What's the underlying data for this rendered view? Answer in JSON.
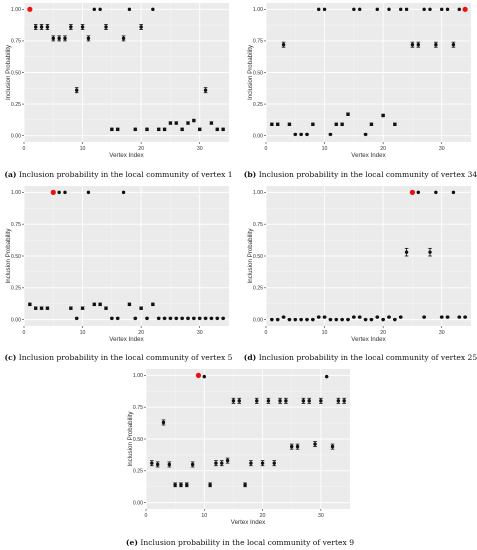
{
  "chart_data": [
    {
      "type": "scatter",
      "caption_label": "(a)",
      "caption_text": "Inclusion probability in the local community of vertex 1",
      "xlabel": "Vertex Index",
      "ylabel": "Inclusion Probability",
      "xlim": [
        0,
        35
      ],
      "ylim": [
        -0.05,
        1.05
      ],
      "x_ticks": [
        0,
        10,
        20,
        30
      ],
      "y_ticks": [
        0.0,
        0.25,
        0.5,
        0.75,
        1.0
      ],
      "y_tick_labels": [
        "0.00",
        "0.25",
        "0.50",
        "0.75",
        "1.00"
      ],
      "grid": true,
      "highlight_color": "#ee1111",
      "point_color": "#111111",
      "panel_background": "#ebebeb",
      "highlight_index": 1,
      "points": [
        {
          "x": 1,
          "y": 1.0,
          "err": 0
        },
        {
          "x": 2,
          "y": 0.86,
          "err": 0.02
        },
        {
          "x": 3,
          "y": 0.86,
          "err": 0.02
        },
        {
          "x": 4,
          "y": 0.86,
          "err": 0.02
        },
        {
          "x": 5,
          "y": 0.77,
          "err": 0.02
        },
        {
          "x": 6,
          "y": 0.77,
          "err": 0.02
        },
        {
          "x": 7,
          "y": 0.77,
          "err": 0.02
        },
        {
          "x": 8,
          "y": 0.86,
          "err": 0.02
        },
        {
          "x": 9,
          "y": 0.36,
          "err": 0.02
        },
        {
          "x": 10,
          "y": 0.86,
          "err": 0.02
        },
        {
          "x": 11,
          "y": 0.77,
          "err": 0.02
        },
        {
          "x": 12,
          "y": 1.0,
          "err": 0
        },
        {
          "x": 13,
          "y": 1.0,
          "err": 0
        },
        {
          "x": 14,
          "y": 0.86,
          "err": 0.02
        },
        {
          "x": 15,
          "y": 0.05,
          "err": 0.01
        },
        {
          "x": 16,
          "y": 0.05,
          "err": 0.01
        },
        {
          "x": 17,
          "y": 0.77,
          "err": 0.02
        },
        {
          "x": 18,
          "y": 1.0,
          "err": 0
        },
        {
          "x": 19,
          "y": 0.05,
          "err": 0.01
        },
        {
          "x": 20,
          "y": 0.86,
          "err": 0.02
        },
        {
          "x": 21,
          "y": 0.05,
          "err": 0.01
        },
        {
          "x": 22,
          "y": 1.0,
          "err": 0
        },
        {
          "x": 23,
          "y": 0.05,
          "err": 0.01
        },
        {
          "x": 24,
          "y": 0.05,
          "err": 0.01
        },
        {
          "x": 25,
          "y": 0.1,
          "err": 0.01
        },
        {
          "x": 26,
          "y": 0.1,
          "err": 0.01
        },
        {
          "x": 27,
          "y": 0.05,
          "err": 0.01
        },
        {
          "x": 28,
          "y": 0.1,
          "err": 0.01
        },
        {
          "x": 29,
          "y": 0.12,
          "err": 0.01
        },
        {
          "x": 30,
          "y": 0.05,
          "err": 0.01
        },
        {
          "x": 31,
          "y": 0.36,
          "err": 0.02
        },
        {
          "x": 32,
          "y": 0.1,
          "err": 0.01
        },
        {
          "x": 33,
          "y": 0.05,
          "err": 0.01
        },
        {
          "x": 34,
          "y": 0.05,
          "err": 0.01
        }
      ]
    },
    {
      "type": "scatter",
      "caption_label": "(b)",
      "caption_text": "Inclusion probability in the local community of vertex 34",
      "xlabel": "Vertex Index",
      "ylabel": "Inclusion Probability",
      "xlim": [
        0,
        35
      ],
      "ylim": [
        -0.05,
        1.05
      ],
      "x_ticks": [
        0,
        10,
        20,
        30
      ],
      "y_ticks": [
        0.0,
        0.25,
        0.5,
        0.75,
        1.0
      ],
      "y_tick_labels": [
        "0.00",
        "0.25",
        "0.50",
        "0.75",
        "1.00"
      ],
      "grid": true,
      "highlight_color": "#ee1111",
      "point_color": "#111111",
      "panel_background": "#ebebeb",
      "highlight_index": 34,
      "points": [
        {
          "x": 1,
          "y": 0.09,
          "err": 0.01
        },
        {
          "x": 2,
          "y": 0.09,
          "err": 0.01
        },
        {
          "x": 3,
          "y": 0.72,
          "err": 0.02
        },
        {
          "x": 4,
          "y": 0.09,
          "err": 0.01
        },
        {
          "x": 5,
          "y": 0.01,
          "err": 0.005
        },
        {
          "x": 6,
          "y": 0.01,
          "err": 0.005
        },
        {
          "x": 7,
          "y": 0.01,
          "err": 0.005
        },
        {
          "x": 8,
          "y": 0.09,
          "err": 0.01
        },
        {
          "x": 9,
          "y": 1.0,
          "err": 0
        },
        {
          "x": 10,
          "y": 1.0,
          "err": 0
        },
        {
          "x": 11,
          "y": 0.01,
          "err": 0.005
        },
        {
          "x": 12,
          "y": 0.09,
          "err": 0.01
        },
        {
          "x": 13,
          "y": 0.09,
          "err": 0.01
        },
        {
          "x": 14,
          "y": 0.17,
          "err": 0.01
        },
        {
          "x": 15,
          "y": 1.0,
          "err": 0
        },
        {
          "x": 16,
          "y": 1.0,
          "err": 0
        },
        {
          "x": 17,
          "y": 0.01,
          "err": 0.005
        },
        {
          "x": 18,
          "y": 0.09,
          "err": 0.01
        },
        {
          "x": 19,
          "y": 1.0,
          "err": 0
        },
        {
          "x": 20,
          "y": 0.16,
          "err": 0.01
        },
        {
          "x": 21,
          "y": 1.0,
          "err": 0
        },
        {
          "x": 22,
          "y": 0.09,
          "err": 0.01
        },
        {
          "x": 23,
          "y": 1.0,
          "err": 0
        },
        {
          "x": 24,
          "y": 1.0,
          "err": 0
        },
        {
          "x": 25,
          "y": 0.72,
          "err": 0.02
        },
        {
          "x": 26,
          "y": 0.72,
          "err": 0.02
        },
        {
          "x": 27,
          "y": 1.0,
          "err": 0
        },
        {
          "x": 28,
          "y": 1.0,
          "err": 0
        },
        {
          "x": 29,
          "y": 0.72,
          "err": 0.02
        },
        {
          "x": 30,
          "y": 1.0,
          "err": 0
        },
        {
          "x": 31,
          "y": 1.0,
          "err": 0
        },
        {
          "x": 32,
          "y": 0.72,
          "err": 0.02
        },
        {
          "x": 33,
          "y": 1.0,
          "err": 0
        },
        {
          "x": 34,
          "y": 1.0,
          "err": 0
        }
      ]
    },
    {
      "type": "scatter",
      "caption_label": "(c)",
      "caption_text": "Inclusion probability in the local community of vertex 5",
      "xlabel": "Vertex Index",
      "ylabel": "Inclusion Probability",
      "xlim": [
        0,
        35
      ],
      "ylim": [
        -0.05,
        1.05
      ],
      "x_ticks": [
        0,
        10,
        20,
        30
      ],
      "y_ticks": [
        0.0,
        0.25,
        0.5,
        0.75,
        1.0
      ],
      "y_tick_labels": [
        "0.00",
        "0.25",
        "0.50",
        "0.75",
        "1.00"
      ],
      "grid": true,
      "highlight_color": "#ee1111",
      "point_color": "#111111",
      "panel_background": "#ebebeb",
      "highlight_index": 5,
      "points": [
        {
          "x": 1,
          "y": 0.12,
          "err": 0.01
        },
        {
          "x": 2,
          "y": 0.09,
          "err": 0.01
        },
        {
          "x": 3,
          "y": 0.09,
          "err": 0.01
        },
        {
          "x": 4,
          "y": 0.09,
          "err": 0.01
        },
        {
          "x": 5,
          "y": 1.0,
          "err": 0
        },
        {
          "x": 6,
          "y": 1.0,
          "err": 0
        },
        {
          "x": 7,
          "y": 1.0,
          "err": 0
        },
        {
          "x": 8,
          "y": 0.09,
          "err": 0.01
        },
        {
          "x": 9,
          "y": 0.01,
          "err": 0.005
        },
        {
          "x": 10,
          "y": 0.09,
          "err": 0.01
        },
        {
          "x": 11,
          "y": 1.0,
          "err": 0
        },
        {
          "x": 12,
          "y": 0.12,
          "err": 0.01
        },
        {
          "x": 13,
          "y": 0.12,
          "err": 0.01
        },
        {
          "x": 14,
          "y": 0.09,
          "err": 0.01
        },
        {
          "x": 15,
          "y": 0.01,
          "err": 0.005
        },
        {
          "x": 16,
          "y": 0.01,
          "err": 0.005
        },
        {
          "x": 17,
          "y": 1.0,
          "err": 0
        },
        {
          "x": 18,
          "y": 0.12,
          "err": 0.01
        },
        {
          "x": 19,
          "y": 0.01,
          "err": 0.005
        },
        {
          "x": 20,
          "y": 0.09,
          "err": 0.01
        },
        {
          "x": 21,
          "y": 0.01,
          "err": 0.005
        },
        {
          "x": 22,
          "y": 0.12,
          "err": 0.01
        },
        {
          "x": 23,
          "y": 0.01,
          "err": 0.005
        },
        {
          "x": 24,
          "y": 0.01,
          "err": 0.005
        },
        {
          "x": 25,
          "y": 0.01,
          "err": 0.005
        },
        {
          "x": 26,
          "y": 0.01,
          "err": 0.005
        },
        {
          "x": 27,
          "y": 0.01,
          "err": 0.005
        },
        {
          "x": 28,
          "y": 0.01,
          "err": 0.005
        },
        {
          "x": 29,
          "y": 0.01,
          "err": 0.005
        },
        {
          "x": 30,
          "y": 0.01,
          "err": 0.005
        },
        {
          "x": 31,
          "y": 0.01,
          "err": 0.005
        },
        {
          "x": 32,
          "y": 0.01,
          "err": 0.005
        },
        {
          "x": 33,
          "y": 0.01,
          "err": 0.005
        },
        {
          "x": 34,
          "y": 0.01,
          "err": 0.005
        }
      ]
    },
    {
      "type": "scatter",
      "caption_label": "(d)",
      "caption_text": "Inclusion probability in the local community of vertex 25",
      "xlabel": "Vertex Index",
      "ylabel": "Inclusion Probability",
      "xlim": [
        0,
        35
      ],
      "ylim": [
        -0.05,
        1.05
      ],
      "x_ticks": [
        0,
        10,
        20,
        30
      ],
      "y_ticks": [
        0.0,
        0.25,
        0.5,
        0.75,
        1.0
      ],
      "y_tick_labels": [
        "0.00",
        "0.25",
        "0.50",
        "0.75",
        "1.00"
      ],
      "grid": true,
      "highlight_color": "#ee1111",
      "point_color": "#111111",
      "panel_background": "#ebebeb",
      "highlight_index": 25,
      "points": [
        {
          "x": 1,
          "y": 0.0,
          "err": 0.005
        },
        {
          "x": 2,
          "y": 0.0,
          "err": 0.005
        },
        {
          "x": 3,
          "y": 0.02,
          "err": 0.005
        },
        {
          "x": 4,
          "y": 0.0,
          "err": 0.005
        },
        {
          "x": 5,
          "y": 0.0,
          "err": 0.005
        },
        {
          "x": 6,
          "y": 0.0,
          "err": 0.005
        },
        {
          "x": 7,
          "y": 0.0,
          "err": 0.005
        },
        {
          "x": 8,
          "y": 0.0,
          "err": 0.005
        },
        {
          "x": 9,
          "y": 0.02,
          "err": 0.005
        },
        {
          "x": 10,
          "y": 0.02,
          "err": 0.005
        },
        {
          "x": 11,
          "y": 0.0,
          "err": 0.005
        },
        {
          "x": 12,
          "y": 0.0,
          "err": 0.005
        },
        {
          "x": 13,
          "y": 0.0,
          "err": 0.005
        },
        {
          "x": 14,
          "y": 0.0,
          "err": 0.005
        },
        {
          "x": 15,
          "y": 0.02,
          "err": 0.005
        },
        {
          "x": 16,
          "y": 0.02,
          "err": 0.005
        },
        {
          "x": 17,
          "y": 0.0,
          "err": 0.005
        },
        {
          "x": 18,
          "y": 0.0,
          "err": 0.005
        },
        {
          "x": 19,
          "y": 0.02,
          "err": 0.005
        },
        {
          "x": 20,
          "y": 0.0,
          "err": 0.005
        },
        {
          "x": 21,
          "y": 0.02,
          "err": 0.005
        },
        {
          "x": 22,
          "y": 0.0,
          "err": 0.005
        },
        {
          "x": 23,
          "y": 0.02,
          "err": 0.005
        },
        {
          "x": 24,
          "y": 0.53,
          "err": 0.03
        },
        {
          "x": 25,
          "y": 1.0,
          "err": 0
        },
        {
          "x": 26,
          "y": 1.0,
          "err": 0
        },
        {
          "x": 27,
          "y": 0.02,
          "err": 0.005
        },
        {
          "x": 28,
          "y": 0.53,
          "err": 0.03
        },
        {
          "x": 29,
          "y": 1.0,
          "err": 0
        },
        {
          "x": 30,
          "y": 0.02,
          "err": 0.005
        },
        {
          "x": 31,
          "y": 0.02,
          "err": 0.005
        },
        {
          "x": 32,
          "y": 1.0,
          "err": 0
        },
        {
          "x": 33,
          "y": 0.02,
          "err": 0.005
        },
        {
          "x": 34,
          "y": 0.02,
          "err": 0.005
        }
      ]
    },
    {
      "type": "scatter",
      "caption_label": "(e)",
      "caption_text": "Inclusion probability in the local community of vertex 9",
      "xlabel": "Vertex Index",
      "ylabel": "Inclusion Probability",
      "xlim": [
        0,
        35
      ],
      "ylim": [
        -0.05,
        1.05
      ],
      "x_ticks": [
        0,
        10,
        20,
        30
      ],
      "y_ticks": [
        0.0,
        0.25,
        0.5,
        0.75,
        1.0
      ],
      "y_tick_labels": [
        "0.00",
        "0.25",
        "0.50",
        "0.75",
        "1.00"
      ],
      "grid": true,
      "highlight_color": "#ee1111",
      "point_color": "#111111",
      "panel_background": "#ebebeb",
      "highlight_index": 9,
      "points": [
        {
          "x": 1,
          "y": 0.31,
          "err": 0.02
        },
        {
          "x": 2,
          "y": 0.3,
          "err": 0.02
        },
        {
          "x": 3,
          "y": 0.63,
          "err": 0.02
        },
        {
          "x": 4,
          "y": 0.3,
          "err": 0.02
        },
        {
          "x": 5,
          "y": 0.14,
          "err": 0.015
        },
        {
          "x": 6,
          "y": 0.14,
          "err": 0.015
        },
        {
          "x": 7,
          "y": 0.14,
          "err": 0.015
        },
        {
          "x": 8,
          "y": 0.3,
          "err": 0.02
        },
        {
          "x": 9,
          "y": 1.0,
          "err": 0
        },
        {
          "x": 10,
          "y": 0.99,
          "err": 0
        },
        {
          "x": 11,
          "y": 0.14,
          "err": 0.015
        },
        {
          "x": 12,
          "y": 0.31,
          "err": 0.02
        },
        {
          "x": 13,
          "y": 0.31,
          "err": 0.02
        },
        {
          "x": 14,
          "y": 0.33,
          "err": 0.02
        },
        {
          "x": 15,
          "y": 0.8,
          "err": 0.02
        },
        {
          "x": 16,
          "y": 0.8,
          "err": 0.02
        },
        {
          "x": 17,
          "y": 0.14,
          "err": 0.015
        },
        {
          "x": 18,
          "y": 0.31,
          "err": 0.02
        },
        {
          "x": 19,
          "y": 0.8,
          "err": 0.02
        },
        {
          "x": 20,
          "y": 0.31,
          "err": 0.02
        },
        {
          "x": 21,
          "y": 0.8,
          "err": 0.02
        },
        {
          "x": 22,
          "y": 0.31,
          "err": 0.02
        },
        {
          "x": 23,
          "y": 0.8,
          "err": 0.02
        },
        {
          "x": 24,
          "y": 0.8,
          "err": 0.02
        },
        {
          "x": 25,
          "y": 0.44,
          "err": 0.02
        },
        {
          "x": 26,
          "y": 0.44,
          "err": 0.02
        },
        {
          "x": 27,
          "y": 0.8,
          "err": 0.02
        },
        {
          "x": 28,
          "y": 0.8,
          "err": 0.02
        },
        {
          "x": 29,
          "y": 0.46,
          "err": 0.02
        },
        {
          "x": 30,
          "y": 0.8,
          "err": 0.02
        },
        {
          "x": 31,
          "y": 0.99,
          "err": 0
        },
        {
          "x": 32,
          "y": 0.44,
          "err": 0.02
        },
        {
          "x": 33,
          "y": 0.8,
          "err": 0.02
        },
        {
          "x": 34,
          "y": 0.8,
          "err": 0.02
        }
      ]
    }
  ]
}
